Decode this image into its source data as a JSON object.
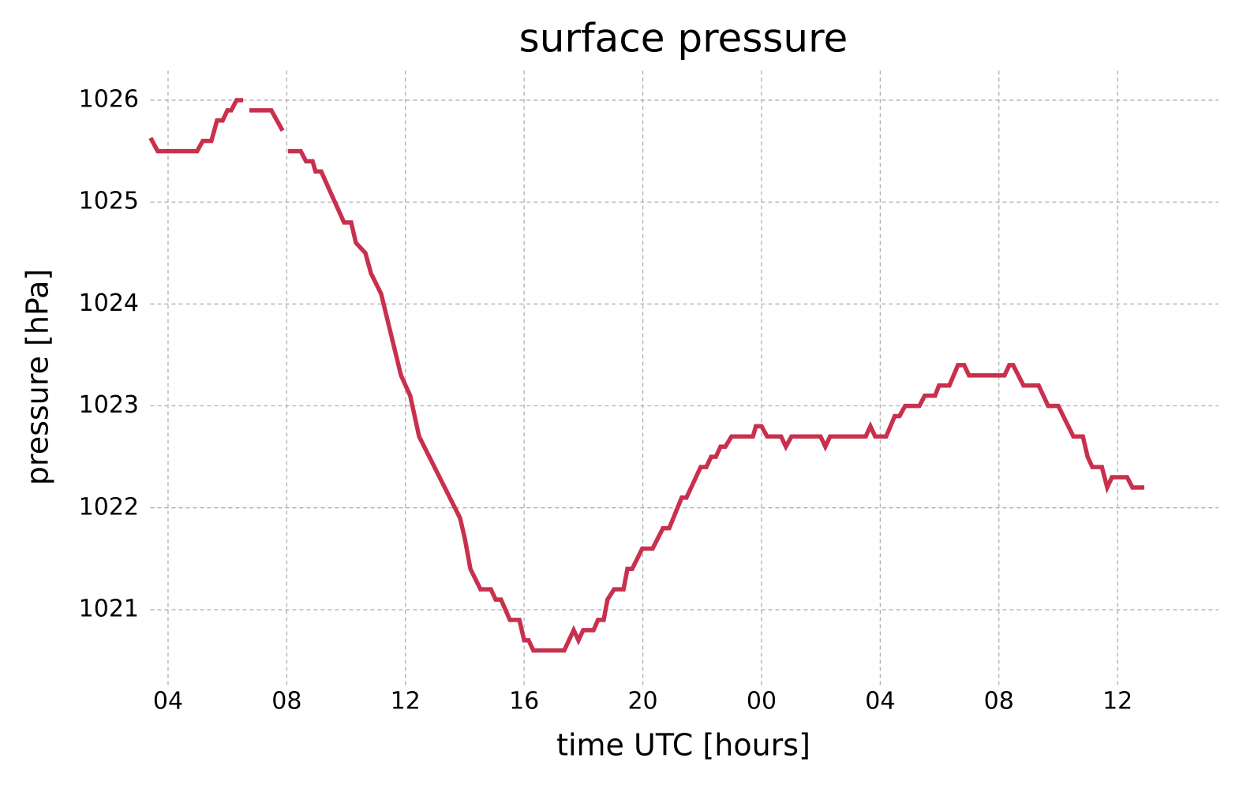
{
  "chart_data": {
    "type": "line",
    "title": "surface pressure",
    "x_label": "time UTC [hours]",
    "y_label": "pressure [hPa]",
    "xlim": [
      3.4,
      39.4
    ],
    "ylim": [
      1020.26,
      1026.29
    ],
    "xticks": [
      {
        "value": 4,
        "label": "04"
      },
      {
        "value": 8,
        "label": "08"
      },
      12,
      16,
      20,
      {
        "value": 24,
        "label": "00"
      },
      {
        "value": 28,
        "label": "04"
      },
      {
        "value": 32,
        "label": "08"
      },
      {
        "value": 36,
        "label": "12"
      }
    ],
    "yticks": [
      1021,
      1022,
      1023,
      1024,
      1025,
      1026
    ],
    "grid": true,
    "series": [
      {
        "color": "#c8304e",
        "x": [
          3.41,
          3.65,
          4.98,
          5.17,
          5.46,
          5.65,
          5.84,
          6.0,
          6.13,
          6.31,
          6.53,
          null,
          6.74,
          7.48,
          7.86,
          null,
          8.04,
          8.47,
          8.65,
          8.87,
          8.97,
          9.16,
          9.93,
          10.17,
          10.33,
          10.65,
          10.84,
          11.18,
          11.85,
          12.16,
          12.46,
          13.84,
          14.0,
          14.19,
          14.53,
          14.88,
          15.04,
          15.22,
          15.52,
          15.84,
          16.0,
          16.15,
          16.31,
          17.35,
          17.67,
          17.83,
          17.99,
          18.34,
          18.49,
          18.68,
          18.81,
          19.03,
          19.35,
          19.48,
          19.64,
          19.98,
          20.33,
          20.68,
          20.89,
          21.31,
          21.47,
          21.95,
          22.14,
          22.3,
          22.46,
          22.62,
          22.78,
          22.99,
          23.71,
          23.81,
          24.0,
          24.19,
          24.66,
          24.82,
          25.01,
          25.99,
          26.15,
          26.31,
          27.51,
          27.67,
          27.83,
          28.2,
          28.49,
          28.65,
          28.84,
          29.32,
          29.5,
          29.85,
          29.98,
          30.33,
          30.62,
          30.83,
          30.99,
          32.19,
          32.35,
          32.48,
          32.83,
          33.34,
          33.66,
          34.0,
          34.51,
          34.83,
          34.99,
          35.15,
          35.47,
          35.65,
          35.81,
          36.32,
          36.5,
          36.9
        ],
        "values": [
          1025.63,
          1025.5,
          1025.5,
          1025.6,
          1025.6,
          1025.8,
          1025.8,
          1025.9,
          1025.9,
          1026.0,
          1026.0,
          null,
          1025.9,
          1025.9,
          1025.7,
          null,
          1025.5,
          1025.5,
          1025.4,
          1025.4,
          1025.3,
          1025.3,
          1024.8,
          1024.8,
          1024.6,
          1024.5,
          1024.3,
          1024.1,
          1023.3,
          1023.1,
          1022.7,
          1021.9,
          1021.7,
          1021.4,
          1021.2,
          1021.2,
          1021.1,
          1021.1,
          1020.9,
          1020.9,
          1020.7,
          1020.7,
          1020.6,
          1020.6,
          1020.8,
          1020.7,
          1020.8,
          1020.8,
          1020.9,
          1020.9,
          1021.1,
          1021.2,
          1021.2,
          1021.4,
          1021.4,
          1021.6,
          1021.6,
          1021.8,
          1021.8,
          1022.1,
          1022.1,
          1022.4,
          1022.4,
          1022.5,
          1022.5,
          1022.6,
          1022.6,
          1022.7,
          1022.7,
          1022.8,
          1022.8,
          1022.7,
          1022.7,
          1022.6,
          1022.7,
          1022.7,
          1022.6,
          1022.7,
          1022.7,
          1022.8,
          1022.7,
          1022.7,
          1022.9,
          1022.9,
          1023.0,
          1023.0,
          1023.1,
          1023.1,
          1023.2,
          1023.2,
          1023.4,
          1023.4,
          1023.3,
          1023.3,
          1023.4,
          1023.4,
          1023.2,
          1023.2,
          1023.0,
          1023.0,
          1022.7,
          1022.7,
          1022.5,
          1022.4,
          1022.4,
          1022.2,
          1022.3,
          1022.3,
          1022.2,
          1022.2
        ]
      }
    ]
  }
}
